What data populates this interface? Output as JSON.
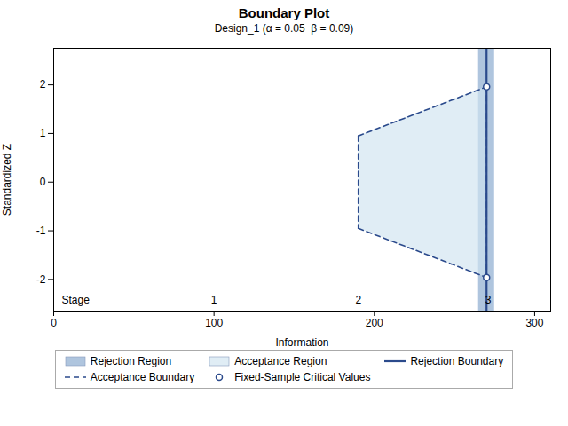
{
  "chart_data": {
    "type": "boundary",
    "title": "Boundary Plot",
    "subtitle": "Design_1 (α = 0.05  β = 0.09)",
    "xlabel": "Information",
    "ylabel": "Standardized Z",
    "xlim": [
      0,
      310
    ],
    "ylim": [
      -2.65,
      2.75
    ],
    "xticks": [
      0,
      100,
      200,
      300
    ],
    "yticks": [
      -2,
      -1,
      0,
      1,
      2
    ],
    "legend": "bottom",
    "series": [
      {
        "name": "Rejection Region",
        "type": "band",
        "color": "#7a9ec8",
        "x": [
          265,
          275
        ],
        "y": [
          -2.65,
          2.75
        ]
      },
      {
        "name": "Acceptance Region",
        "type": "area",
        "color": "#d0e4f0",
        "x": [
          190,
          270
        ],
        "upper": [
          0.95,
          1.96
        ],
        "lower": [
          -0.95,
          -1.96
        ]
      },
      {
        "name": "Rejection Boundary",
        "type": "rule",
        "color": "#2b4a8c",
        "line_style": "solid",
        "x": 270
      },
      {
        "name": "Acceptance Boundary",
        "type": "line",
        "color": "#2b4a8c",
        "line_style": "dashed",
        "x": [
          190,
          270
        ],
        "upper": [
          0.95,
          1.96
        ],
        "lower": [
          -0.95,
          -1.96
        ]
      },
      {
        "name": "Fixed-Sample Critical Values",
        "type": "scatter",
        "color": "#2b4a8c",
        "marker": "circle",
        "x": [
          270,
          270
        ],
        "values": [
          1.96,
          -1.96
        ]
      }
    ],
    "annotations": [
      {
        "text": "Stage",
        "x": 5,
        "y": -2.42
      },
      {
        "text": "1",
        "x": 100,
        "y": -2.42
      },
      {
        "text": "2",
        "x": 190,
        "y": -2.42
      },
      {
        "text": "3",
        "x": 271,
        "y": -2.42
      }
    ]
  }
}
